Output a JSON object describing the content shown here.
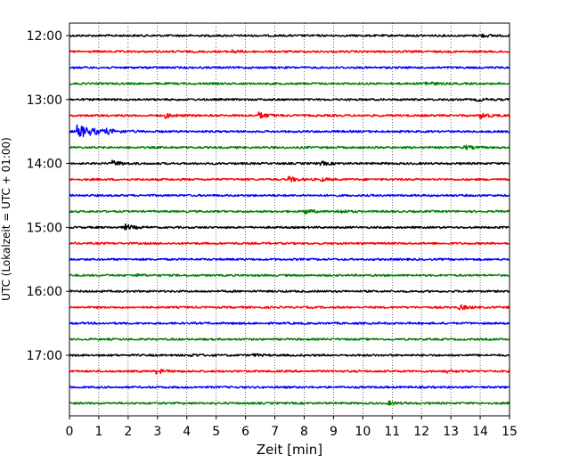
{
  "chart_data": {
    "type": "line",
    "title": "",
    "xlabel": "Zeit  [min]",
    "ylabel": "UTC (Lokalzeit = UTC + 01:00)",
    "xlim": [
      0,
      15
    ],
    "x_ticks": [
      0,
      1,
      2,
      3,
      4,
      5,
      6,
      7,
      8,
      9,
      10,
      11,
      12,
      13,
      14,
      15
    ],
    "y_ticks": [
      {
        "label": "12:00",
        "trace_index": 0
      },
      {
        "label": "13:00",
        "trace_index": 4
      },
      {
        "label": "14:00",
        "trace_index": 8
      },
      {
        "label": "15:00",
        "trace_index": 12
      },
      {
        "label": "16:00",
        "trace_index": 16
      },
      {
        "label": "17:00",
        "trace_index": 20
      }
    ],
    "grid": "vertical-dotted",
    "trace_interval_minutes": 15,
    "trace_colors": [
      "#000000",
      "#ff0000",
      "#0000ff",
      "#008000"
    ],
    "traces": [
      {
        "start": "12:00",
        "color": "#000000",
        "events": [
          {
            "t": 14.0,
            "amp": 1.6
          }
        ]
      },
      {
        "start": "12:15",
        "color": "#ff0000",
        "events": [
          {
            "t": 5.6,
            "amp": 1.3
          }
        ]
      },
      {
        "start": "12:30",
        "color": "#0000ff",
        "events": []
      },
      {
        "start": "12:45",
        "color": "#008000",
        "events": [
          {
            "t": 12.1,
            "amp": 2.2
          }
        ]
      },
      {
        "start": "13:00",
        "color": "#000000",
        "events": [
          {
            "t": 13.9,
            "amp": 1.5
          }
        ]
      },
      {
        "start": "13:15",
        "color": "#ff0000",
        "events": [
          {
            "t": 3.3,
            "amp": 2.2
          },
          {
            "t": 6.5,
            "amp": 3.0
          },
          {
            "t": 14.0,
            "amp": 3.2
          }
        ]
      },
      {
        "start": "13:30",
        "color": "#0000ff",
        "events": [
          {
            "t": 0.3,
            "amp": 6.5
          },
          {
            "t": 1.3,
            "amp": 1.3
          }
        ]
      },
      {
        "start": "13:45",
        "color": "#008000",
        "events": [
          {
            "t": 13.5,
            "amp": 1.8
          }
        ]
      },
      {
        "start": "14:00",
        "color": "#000000",
        "events": [
          {
            "t": 1.5,
            "amp": 2.6
          },
          {
            "t": 8.6,
            "amp": 1.6
          }
        ]
      },
      {
        "start": "14:15",
        "color": "#ff0000",
        "events": [
          {
            "t": 7.5,
            "amp": 2.6
          },
          {
            "t": 8.6,
            "amp": 1.3
          }
        ]
      },
      {
        "start": "14:30",
        "color": "#0000ff",
        "events": []
      },
      {
        "start": "14:45",
        "color": "#008000",
        "events": [
          {
            "t": 8.0,
            "amp": 2.6
          },
          {
            "t": 9.2,
            "amp": 1.7
          }
        ]
      },
      {
        "start": "15:00",
        "color": "#000000",
        "events": [
          {
            "t": 1.9,
            "amp": 3.0
          }
        ]
      },
      {
        "start": "15:15",
        "color": "#ff0000",
        "events": []
      },
      {
        "start": "15:30",
        "color": "#0000ff",
        "events": []
      },
      {
        "start": "15:45",
        "color": "#008000",
        "events": [
          {
            "t": 2.2,
            "amp": 1.3
          }
        ]
      },
      {
        "start": "16:00",
        "color": "#000000",
        "events": []
      },
      {
        "start": "16:15",
        "color": "#ff0000",
        "events": [
          {
            "t": 13.3,
            "amp": 2.4
          }
        ]
      },
      {
        "start": "16:30",
        "color": "#0000ff",
        "events": []
      },
      {
        "start": "16:45",
        "color": "#008000",
        "events": []
      },
      {
        "start": "17:00",
        "color": "#000000",
        "events": [
          {
            "t": 4.2,
            "amp": 1.2
          },
          {
            "t": 6.3,
            "amp": 1.1
          }
        ]
      },
      {
        "start": "17:15",
        "color": "#ff0000",
        "events": [
          {
            "t": 3.0,
            "amp": 2.2
          },
          {
            "t": 12.8,
            "amp": 1.6
          }
        ]
      },
      {
        "start": "17:30",
        "color": "#0000ff",
        "events": []
      },
      {
        "start": "17:45",
        "color": "#008000",
        "events": [
          {
            "t": 10.9,
            "amp": 1.6
          }
        ]
      }
    ]
  }
}
